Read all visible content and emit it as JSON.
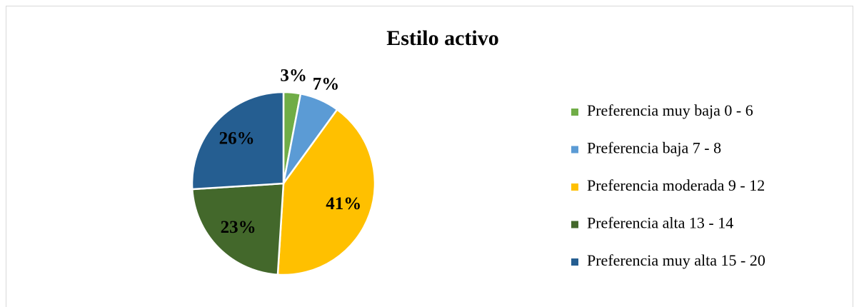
{
  "chart_data": {
    "type": "pie",
    "title": "Estilo activo",
    "categories": [
      "Preferencia muy baja 0 - 6",
      "Preferencia baja 7 - 8",
      "Preferencia moderada 9 - 12",
      "Preferencia alta 13 - 14",
      "Preferencia muy alta 15 - 20"
    ],
    "values": [
      3,
      7,
      41,
      23,
      26
    ],
    "value_labels": [
      "3%",
      "7%",
      "41%",
      "23%",
      "26%"
    ],
    "colors": [
      "#70ad47",
      "#5b9bd5",
      "#ffc000",
      "#43682b",
      "#255e91"
    ],
    "legend": "right"
  }
}
